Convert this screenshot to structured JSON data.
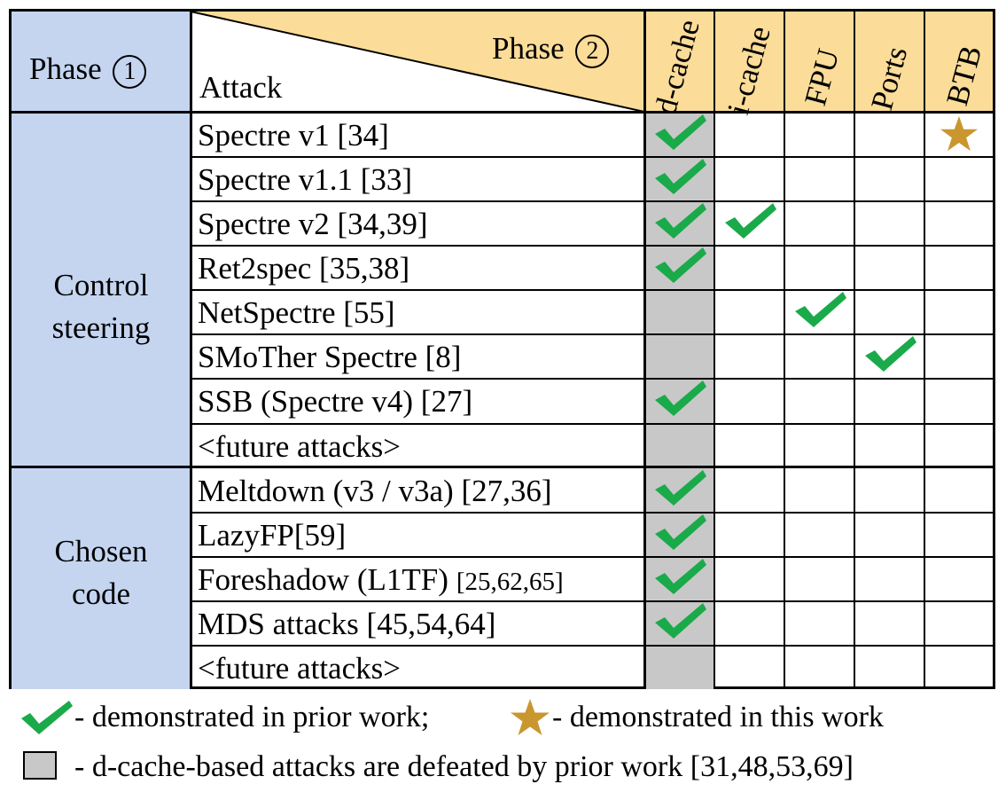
{
  "header": {
    "phase1_label": "Phase",
    "phase1_num": "1",
    "phase2_label": "Phase",
    "phase2_num": "2",
    "attack_label": "Attack",
    "columns": [
      "d-cache",
      "i-cache",
      "FPU",
      "Ports",
      "BTB"
    ]
  },
  "groups": [
    {
      "label_line1": "Control",
      "label_line2": "steering"
    },
    {
      "label_line1": "Chosen",
      "label_line2": "code"
    }
  ],
  "rows": [
    {
      "name": "Spectre v1 [34]",
      "marks": [
        "check",
        "",
        "",
        "",
        "star"
      ]
    },
    {
      "name": "Spectre v1.1 [33]",
      "marks": [
        "check",
        "",
        "",
        "",
        ""
      ]
    },
    {
      "name": "Spectre v2 [34,39]",
      "marks": [
        "check",
        "check",
        "",
        "",
        ""
      ]
    },
    {
      "name": "Ret2spec [35,38]",
      "marks": [
        "check",
        "",
        "",
        "",
        ""
      ]
    },
    {
      "name": "NetSpectre [55]",
      "marks": [
        "",
        "",
        "check",
        "",
        ""
      ]
    },
    {
      "name": "SMoTher Spectre [8]",
      "marks": [
        "",
        "",
        "",
        "check",
        ""
      ]
    },
    {
      "name": "SSB (Spectre v4) [27]",
      "marks": [
        "check",
        "",
        "",
        "",
        ""
      ]
    },
    {
      "name": "<future attacks>",
      "marks": [
        "",
        "",
        "",
        "",
        ""
      ]
    },
    {
      "name": "Meltdown (v3 / v3a) [27,36]",
      "marks": [
        "check",
        "",
        "",
        "",
        ""
      ]
    },
    {
      "name": "LazyFP[59]",
      "marks": [
        "check",
        "",
        "",
        "",
        ""
      ]
    },
    {
      "name": "Foreshadow (L1TF)",
      "name_suffix": "[25,62,65]",
      "marks": [
        "check",
        "",
        "",
        "",
        ""
      ]
    },
    {
      "name": "MDS attacks [45,54,64]",
      "marks": [
        "check",
        "",
        "",
        "",
        ""
      ]
    },
    {
      "name": "<future attacks>",
      "marks": [
        "",
        "",
        "",
        "",
        ""
      ]
    }
  ],
  "legend": {
    "check_text": "- demonstrated in prior work;",
    "star_text": "- demonstrated in this work",
    "gray_text": "- d-cache-based attacks are defeated by prior work [31,48,53,69]"
  },
  "colors": {
    "phase1": "#c5d5f0",
    "phase2": "#fbdc98",
    "dcache": "#c8c8c8",
    "check": "#1aaa4a",
    "star": "#c9962f"
  }
}
